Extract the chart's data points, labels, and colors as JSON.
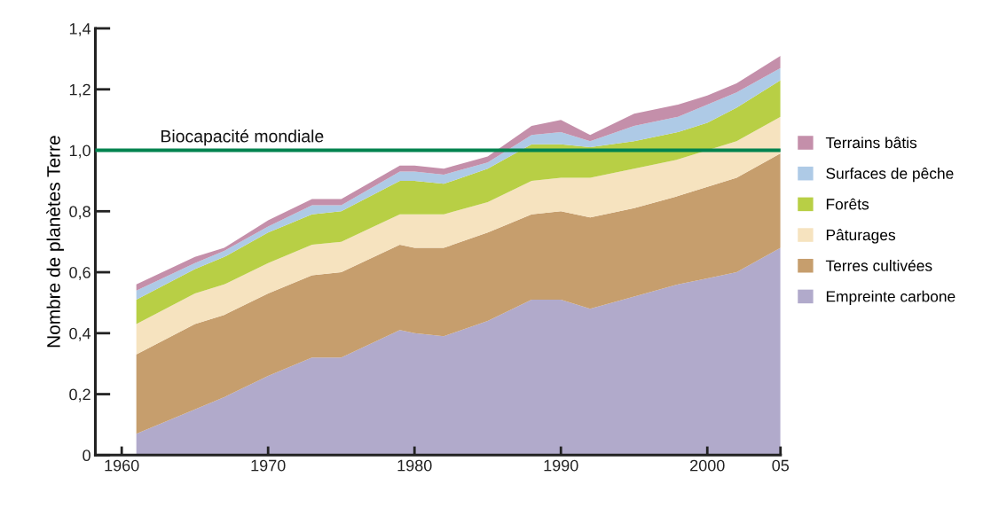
{
  "chart_data": {
    "type": "area",
    "stacked": true,
    "ylabel": "Nombre de planètes Terre",
    "x": [
      1961,
      1965,
      1967,
      1970,
      1973,
      1975,
      1979,
      1980,
      1982,
      1985,
      1988,
      1990,
      1992,
      1995,
      1998,
      2000,
      2002,
      2005
    ],
    "series": [
      {
        "name": "Empreinte carbone",
        "color": "#b1aacb",
        "values": [
          0.07,
          0.15,
          0.19,
          0.26,
          0.32,
          0.32,
          0.41,
          0.4,
          0.39,
          0.44,
          0.51,
          0.51,
          0.48,
          0.52,
          0.56,
          0.58,
          0.6,
          0.68
        ]
      },
      {
        "name": "Terres cultivées",
        "color": "#c69e6d",
        "values": [
          0.26,
          0.28,
          0.27,
          0.27,
          0.27,
          0.28,
          0.28,
          0.28,
          0.29,
          0.29,
          0.28,
          0.29,
          0.3,
          0.29,
          0.29,
          0.3,
          0.31,
          0.31
        ]
      },
      {
        "name": "Pâturages",
        "color": "#f6e3bf",
        "values": [
          0.1,
          0.1,
          0.1,
          0.1,
          0.1,
          0.1,
          0.1,
          0.11,
          0.11,
          0.1,
          0.11,
          0.11,
          0.13,
          0.13,
          0.12,
          0.12,
          0.12,
          0.12
        ]
      },
      {
        "name": "Forêts",
        "color": "#b8cf45",
        "values": [
          0.08,
          0.08,
          0.09,
          0.1,
          0.1,
          0.1,
          0.11,
          0.11,
          0.1,
          0.11,
          0.12,
          0.11,
          0.1,
          0.09,
          0.09,
          0.09,
          0.11,
          0.12
        ]
      },
      {
        "name": "Surfaces de pêche",
        "color": "#aecae6",
        "values": [
          0.03,
          0.02,
          0.02,
          0.02,
          0.03,
          0.02,
          0.03,
          0.03,
          0.03,
          0.02,
          0.03,
          0.04,
          0.02,
          0.05,
          0.05,
          0.06,
          0.05,
          0.04
        ]
      },
      {
        "name": "Terrains bâtis",
        "color": "#c48faa",
        "values": [
          0.02,
          0.02,
          0.01,
          0.02,
          0.02,
          0.02,
          0.02,
          0.02,
          0.02,
          0.02,
          0.03,
          0.04,
          0.02,
          0.04,
          0.04,
          0.03,
          0.03,
          0.04
        ]
      }
    ],
    "xlim": [
      1958.2,
      2005
    ],
    "xticks": [
      1960,
      1970,
      1980,
      1990,
      2000,
      {
        "value": 2005,
        "label": "05"
      }
    ],
    "ylim": [
      0,
      1.4
    ],
    "yticks": [
      0,
      {
        "value": 0.2,
        "label": "0,2"
      },
      {
        "value": 0.4,
        "label": "0,4"
      },
      {
        "value": 0.6,
        "label": "0,6"
      },
      {
        "value": 0.8,
        "label": "0,8"
      },
      {
        "value": 1.0,
        "label": "1,0"
      },
      {
        "value": 1.2,
        "label": "1,2"
      },
      {
        "value": 1.4,
        "label": "1,4"
      }
    ],
    "ref_lines": [
      {
        "axis": "y",
        "value": 1.0,
        "label": "Biocapacité mondiale",
        "color": "#00834f"
      }
    ],
    "grid": false,
    "legend": "right"
  }
}
